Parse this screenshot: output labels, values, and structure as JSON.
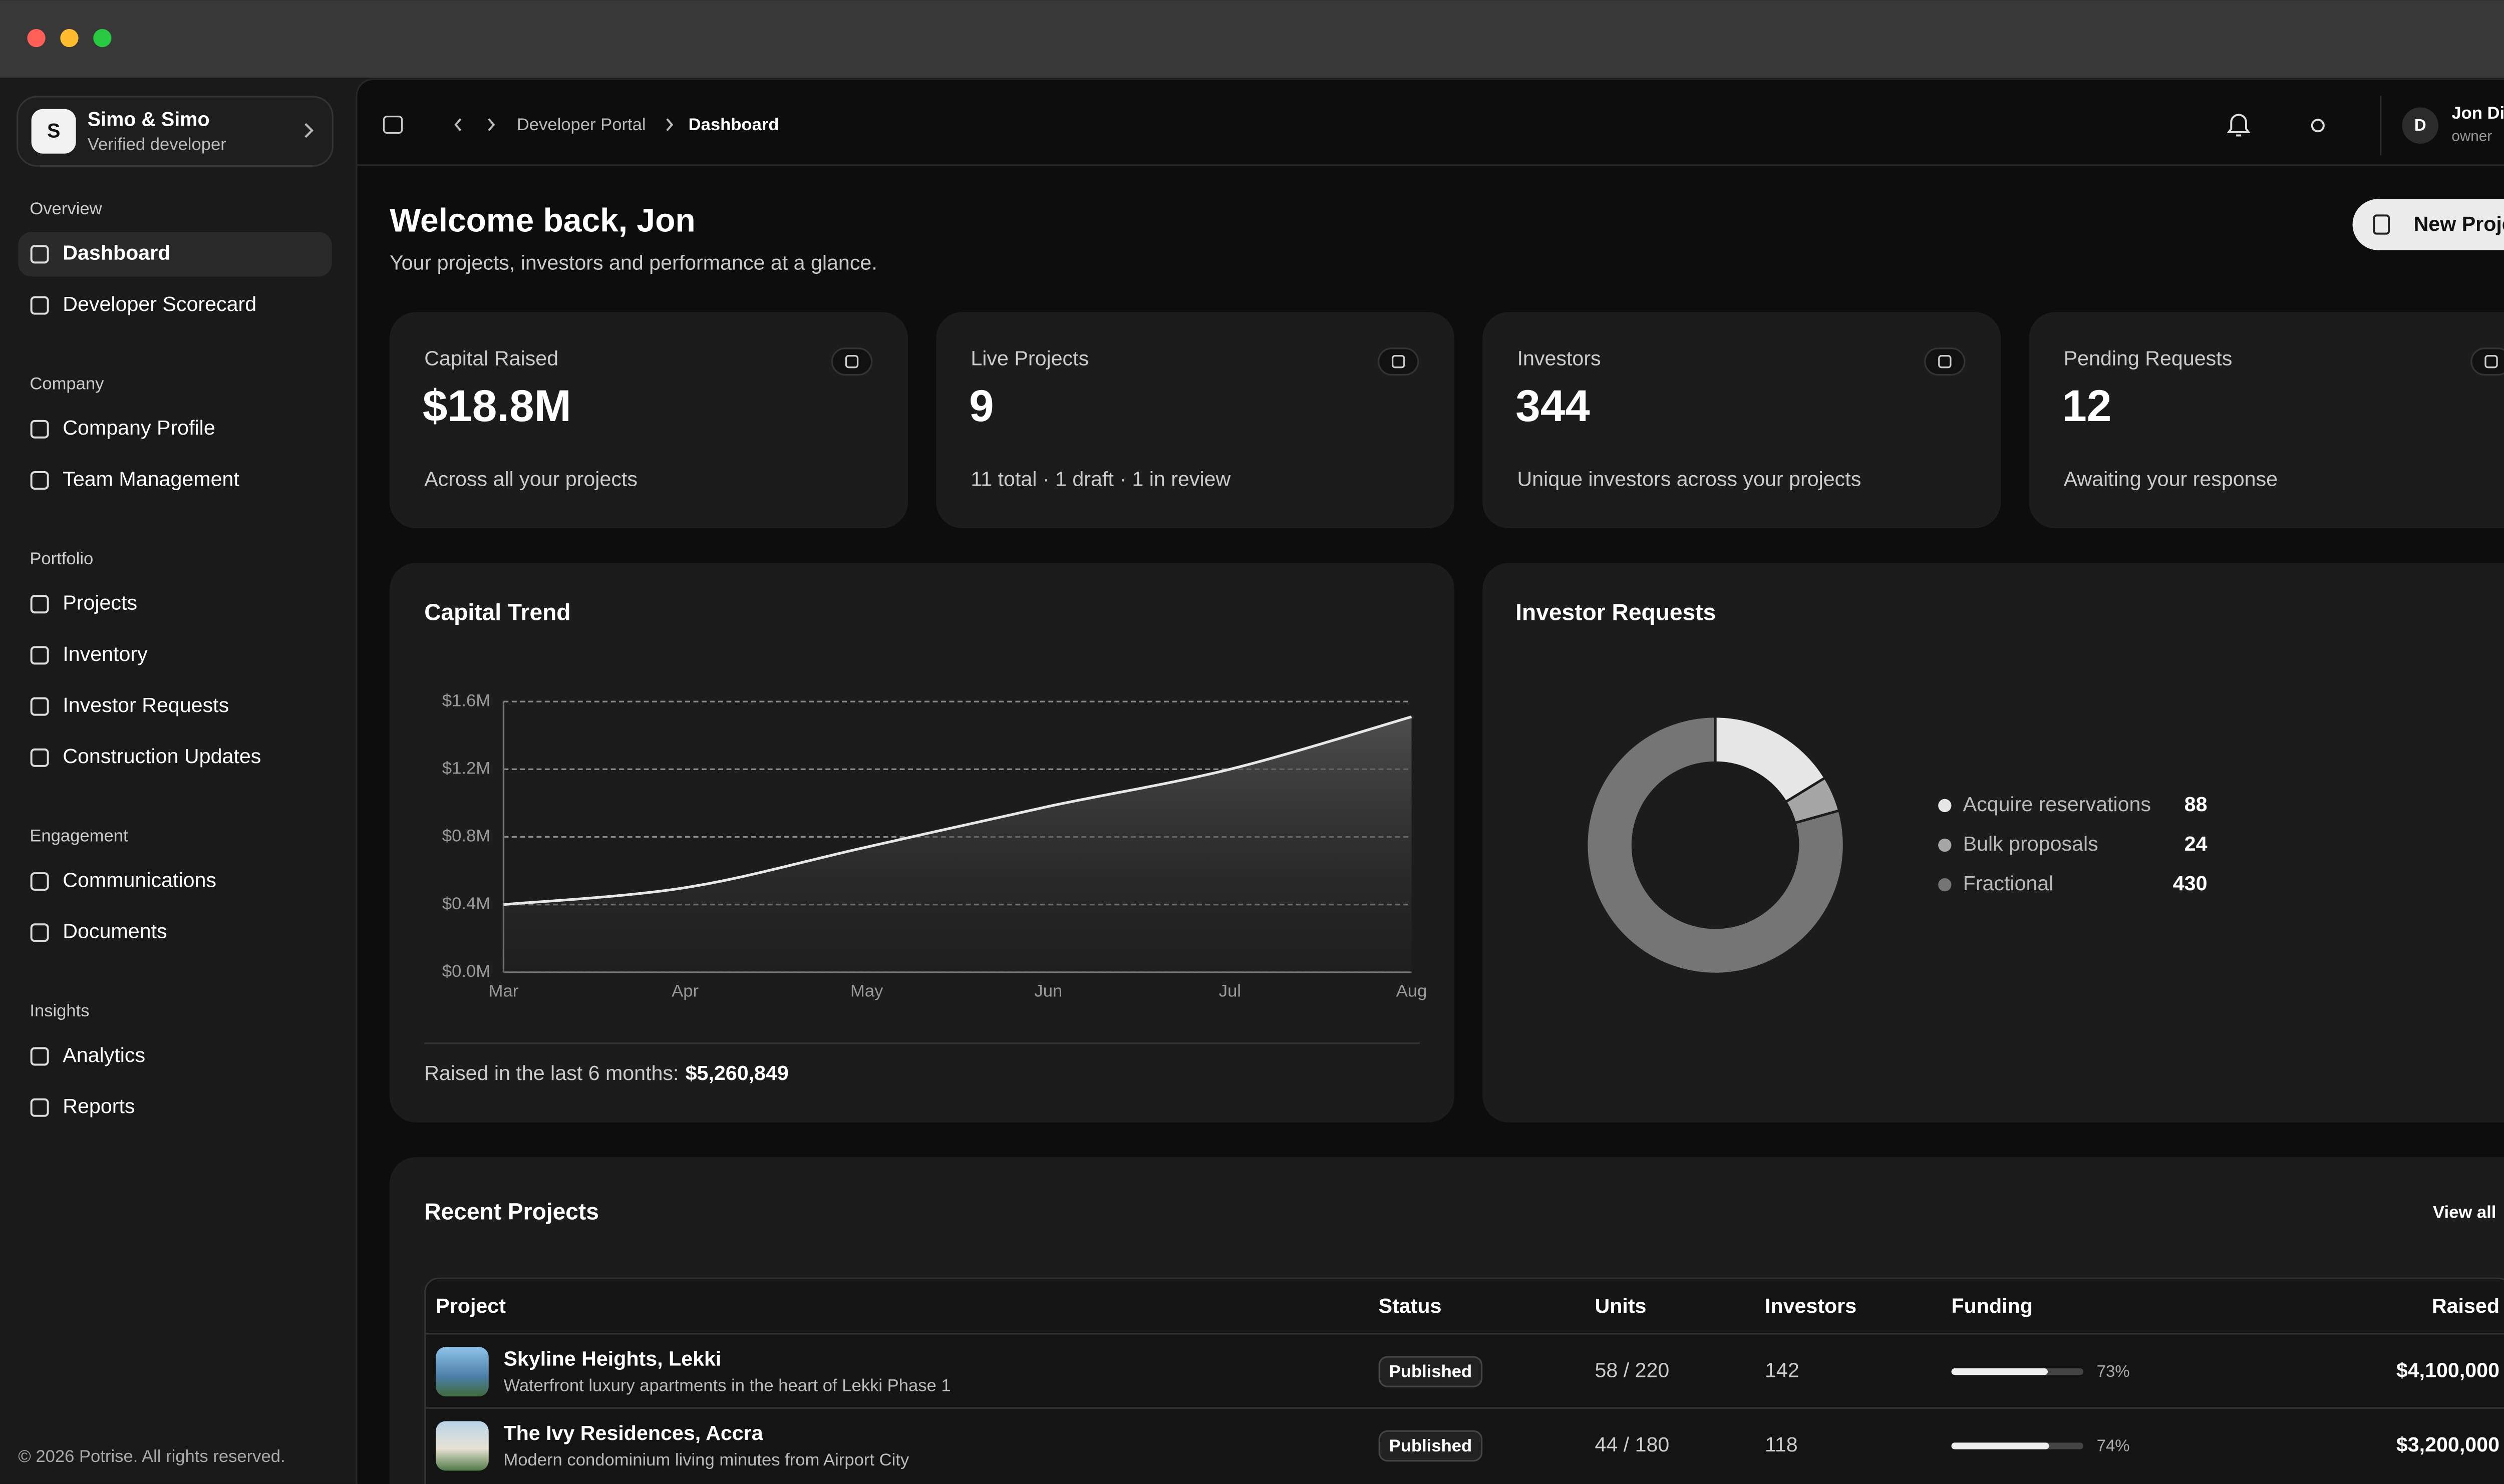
{
  "sidebar": {
    "org": {
      "initial": "S",
      "name": "Simo & Simo",
      "subtitle": "Verified developer"
    },
    "groups": [
      {
        "label": "Overview",
        "items": [
          {
            "label": "Dashboard",
            "active": true
          },
          {
            "label": "Developer Scorecard"
          }
        ]
      },
      {
        "label": "Company",
        "items": [
          {
            "label": "Company Profile"
          },
          {
            "label": "Team Management"
          }
        ]
      },
      {
        "label": "Portfolio",
        "items": [
          {
            "label": "Projects"
          },
          {
            "label": "Inventory"
          },
          {
            "label": "Investor Requests"
          },
          {
            "label": "Construction Updates"
          }
        ]
      },
      {
        "label": "Engagement",
        "items": [
          {
            "label": "Communications"
          },
          {
            "label": "Documents"
          }
        ]
      },
      {
        "label": "Insights",
        "items": [
          {
            "label": "Analytics"
          },
          {
            "label": "Reports"
          }
        ]
      }
    ],
    "footer": "© 2026 Potrise. All rights reserved."
  },
  "header": {
    "breadcrumb": [
      "Developer Portal",
      "Dashboard"
    ],
    "user": {
      "initial": "D",
      "name": "Jon Diku",
      "role": "owner"
    }
  },
  "page": {
    "title": "Welcome back, Jon",
    "subtitle": "Your projects, investors and performance at a glance.",
    "action": "New Project"
  },
  "stats": [
    {
      "label": "Capital Raised",
      "value": "$18.8M",
      "note": "Across all your projects"
    },
    {
      "label": "Live Projects",
      "value": "9",
      "note": "11 total · 1 draft · 1 in review"
    },
    {
      "label": "Investors",
      "value": "344",
      "note": "Unique investors across your projects"
    },
    {
      "label": "Pending Requests",
      "value": "12",
      "note": "Awaiting your response"
    }
  ],
  "capital_trend": {
    "type": "line",
    "title": "Capital Trend",
    "categories": [
      "Mar",
      "Apr",
      "May",
      "Jun",
      "Jul",
      "Aug"
    ],
    "values": [
      0.4,
      0.5,
      0.74,
      0.98,
      1.2,
      1.51
    ],
    "color": "#e8e8e8",
    "ylim": [
      0,
      1.6
    ],
    "yticks": [
      {
        "value": 0,
        "label": "$0.0M"
      },
      {
        "value": 0.4,
        "label": "$0.4M"
      },
      {
        "value": 0.8,
        "label": "$0.8M"
      },
      {
        "value": 1.2,
        "label": "$1.2M"
      },
      {
        "value": 1.6,
        "label": "$1.6M"
      }
    ],
    "grid": true,
    "footer_label": "Raised in the last 6 months:",
    "footer_value": "$5,260,849"
  },
  "investor_requests": {
    "type": "donut",
    "title": "Investor Requests",
    "categories": [
      "Acquire reservations",
      "Bulk proposals",
      "Fractional"
    ],
    "values": [
      88,
      24,
      430
    ],
    "colors": [
      "#e6e6e6",
      "#a6a6a6",
      "#757575"
    ]
  },
  "recent_projects": {
    "title": "Recent Projects",
    "link": "View all",
    "columns": [
      "Project",
      "Status",
      "Units",
      "Investors",
      "Funding",
      "Raised"
    ],
    "rows": [
      {
        "name": "Skyline Heights, Lekki",
        "description": "Waterfront luxury apartments in the heart of Lekki Phase 1",
        "status": "Published",
        "units": "58 / 220",
        "investors": 142,
        "funding": {
          "value": 73,
          "label": "73%"
        },
        "raised": "$4,100,000"
      },
      {
        "name": "The Ivy Residences, Accra",
        "description": "Modern condominium living minutes from Airport City",
        "status": "Published",
        "units": "44 / 180",
        "investors": 118,
        "funding": {
          "value": 74,
          "label": "74%"
        },
        "raised": "$3,200,000"
      }
    ]
  }
}
